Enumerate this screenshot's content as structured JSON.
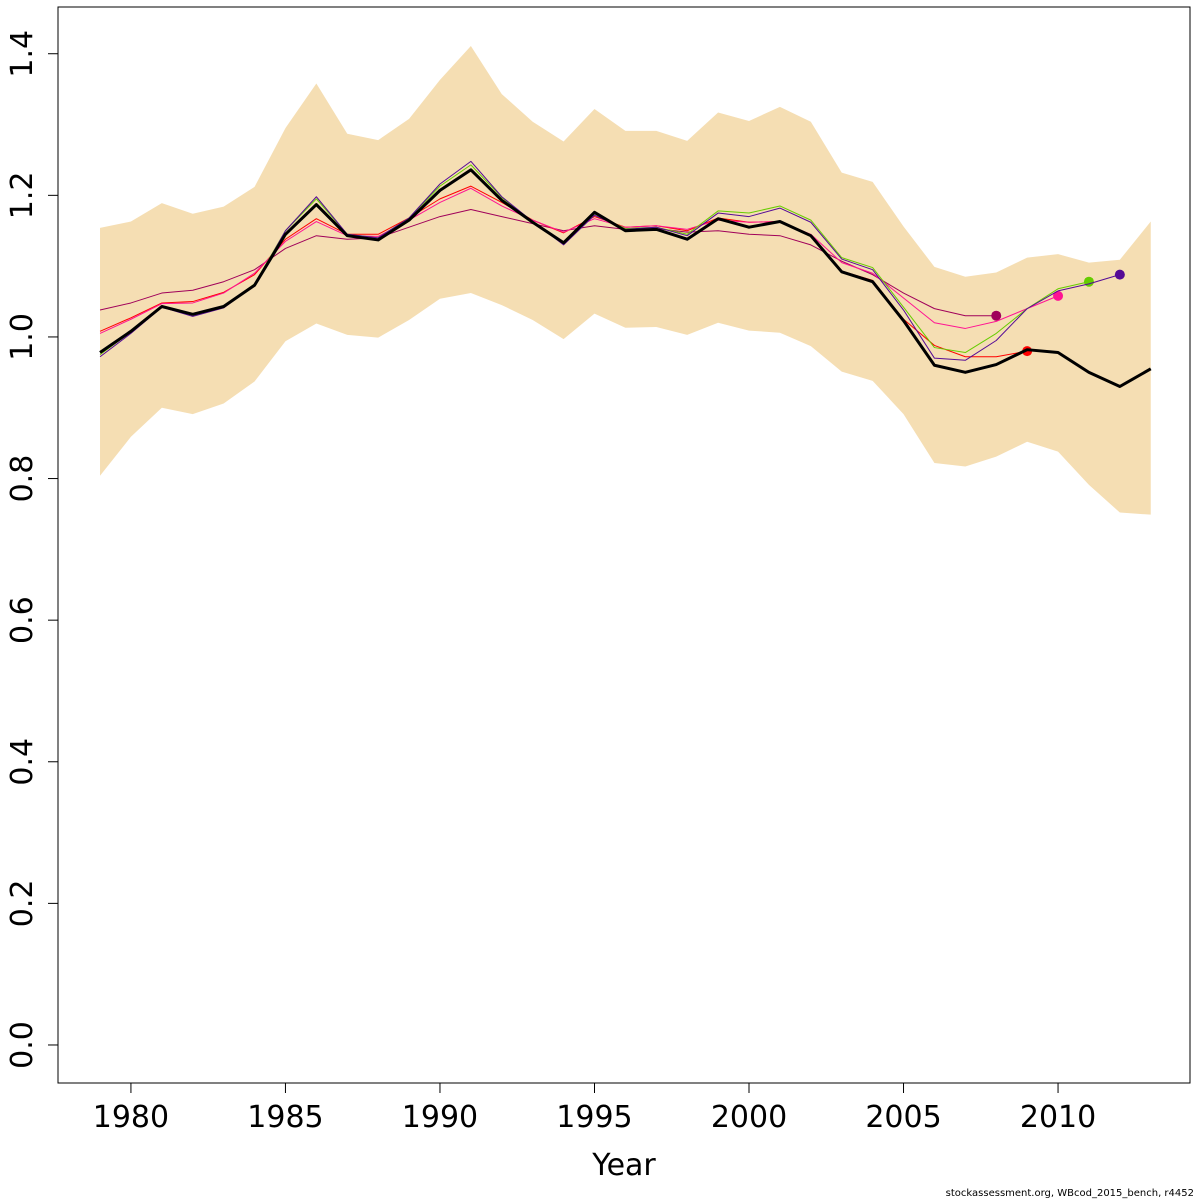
{
  "chart_data": {
    "type": "line",
    "x_label": "Year",
    "footnote": "stockassessment.org, WBcod_2015_bench, r4452",
    "x": [
      1979,
      1980,
      1981,
      1982,
      1983,
      1984,
      1985,
      1986,
      1987,
      1988,
      1989,
      1990,
      1991,
      1992,
      1993,
      1994,
      1995,
      1996,
      1997,
      1998,
      1999,
      2000,
      2001,
      2002,
      2003,
      2004,
      2005,
      2006,
      2007,
      2008,
      2009,
      2010,
      2011,
      2012,
      2013
    ],
    "xlim": [
      1977.64,
      2014.27
    ],
    "xticks": [
      1980,
      1985,
      1990,
      1995,
      2000,
      2005,
      2010
    ],
    "ylim": [
      -0.0537,
      1.466
    ],
    "yticks": [
      {
        "value": 0,
        "label": "0.0"
      },
      0.2,
      0.4,
      0.6,
      0.8,
      {
        "value": 1,
        "label": "1.0"
      },
      1.2,
      1.4
    ],
    "band": {
      "color": "#f5deb3",
      "upper": [
        1.154,
        1.163,
        1.189,
        1.174,
        1.184,
        1.212,
        1.295,
        1.358,
        1.287,
        1.278,
        1.308,
        1.363,
        1.411,
        1.343,
        1.304,
        1.276,
        1.322,
        1.291,
        1.291,
        1.277,
        1.317,
        1.305,
        1.325,
        1.304,
        1.232,
        1.219,
        1.156,
        1.099,
        1.085,
        1.091,
        1.112,
        1.117,
        1.105,
        1.109,
        1.163
      ],
      "lower": [
        0.804,
        0.859,
        0.9,
        0.891,
        0.906,
        0.937,
        0.994,
        1.019,
        1.003,
        0.999,
        1.024,
        1.054,
        1.062,
        1.045,
        1.024,
        0.997,
        1.033,
        1.013,
        1.014,
        1.003,
        1.02,
        1.009,
        1.006,
        0.987,
        0.951,
        0.938,
        0.891,
        0.822,
        0.817,
        0.831,
        0.852,
        0.838,
        0.791,
        0.752,
        0.749
      ]
    },
    "series": [
      {
        "color": "#a0005a",
        "width": 1,
        "endpoint": true,
        "values": [
          1.038,
          1.048,
          1.062,
          1.066,
          1.078,
          1.095,
          1.125,
          1.143,
          1.138,
          1.14,
          1.155,
          1.17,
          1.18,
          1.17,
          1.16,
          1.15,
          1.157,
          1.152,
          1.153,
          1.148,
          1.15,
          1.145,
          1.143,
          1.13,
          1.107,
          1.088,
          1.062,
          1.04,
          1.03,
          1.03,
          null,
          null,
          null,
          null,
          null
        ]
      },
      {
        "color": "#ff0000",
        "width": 1,
        "endpoint": true,
        "values": [
          1.008,
          1.027,
          1.048,
          1.05,
          1.063,
          1.088,
          1.138,
          1.167,
          1.145,
          1.145,
          1.168,
          1.195,
          1.213,
          1.19,
          1.165,
          1.147,
          1.17,
          1.155,
          1.157,
          1.15,
          1.168,
          1.162,
          1.163,
          1.143,
          1.093,
          1.08,
          1.025,
          0.988,
          0.972,
          0.972,
          0.98,
          null,
          null,
          null,
          null
        ]
      },
      {
        "color": "#ff1493",
        "width": 1,
        "endpoint": true,
        "values": [
          1.005,
          1.025,
          1.047,
          1.048,
          1.062,
          1.09,
          1.135,
          1.163,
          1.143,
          1.142,
          1.165,
          1.19,
          1.21,
          1.185,
          1.165,
          1.148,
          1.167,
          1.155,
          1.157,
          1.152,
          1.165,
          1.162,
          1.163,
          1.145,
          1.105,
          1.09,
          1.055,
          1.02,
          1.012,
          1.022,
          1.04,
          1.058,
          null,
          null,
          null
        ]
      },
      {
        "color": "#66cc00",
        "width": 1,
        "endpoint": true,
        "values": [
          0.975,
          1.007,
          1.043,
          1.031,
          1.043,
          1.075,
          1.15,
          1.195,
          1.145,
          1.14,
          1.168,
          1.213,
          1.243,
          1.197,
          1.163,
          1.132,
          1.174,
          1.153,
          1.155,
          1.145,
          1.178,
          1.175,
          1.185,
          1.165,
          1.112,
          1.098,
          1.042,
          0.985,
          0.978,
          1.005,
          1.04,
          1.068,
          1.078,
          null,
          null
        ]
      },
      {
        "color": "#550a96",
        "width": 1,
        "endpoint": true,
        "values": [
          0.972,
          1.005,
          1.042,
          1.029,
          1.041,
          1.073,
          1.15,
          1.198,
          1.145,
          1.14,
          1.168,
          1.216,
          1.248,
          1.198,
          1.163,
          1.13,
          1.172,
          1.152,
          1.155,
          1.143,
          1.175,
          1.17,
          1.182,
          1.162,
          1.11,
          1.095,
          1.038,
          0.97,
          0.967,
          0.995,
          1.04,
          1.065,
          1.075,
          1.088,
          null
        ]
      },
      {
        "color": "#000000",
        "width": 3,
        "endpoint": false,
        "values": [
          0.978,
          1.008,
          1.043,
          1.032,
          1.043,
          1.073,
          1.145,
          1.187,
          1.143,
          1.137,
          1.165,
          1.207,
          1.236,
          1.193,
          1.162,
          1.133,
          1.176,
          1.15,
          1.152,
          1.138,
          1.167,
          1.155,
          1.163,
          1.143,
          1.092,
          1.078,
          1.023,
          0.96,
          0.95,
          0.961,
          0.982,
          0.978,
          0.95,
          0.93,
          0.955
        ]
      }
    ]
  }
}
